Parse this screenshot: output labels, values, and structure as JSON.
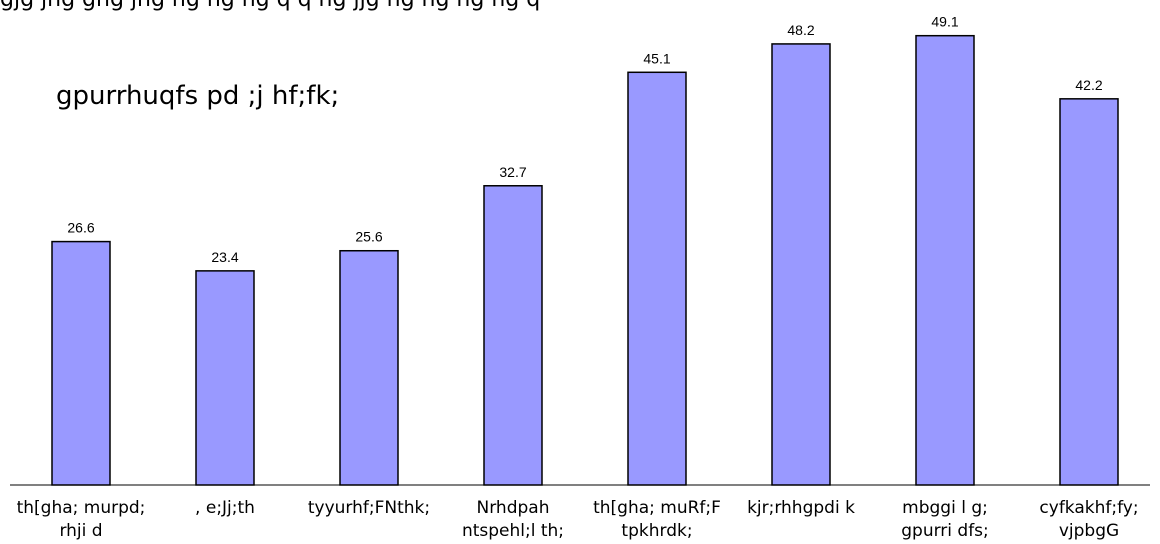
{
  "header": {
    "top_text": "gjg jhg ghg jhg hg hg hg q q ng jjg ng hg hg hg q"
  },
  "chart_data": {
    "type": "bar",
    "subtitle": "gpurrhuqfs pd ;j hf;fk;",
    "categories": [
      [
        "th[gha; murpd;",
        "rhji d"
      ],
      [
        ", e;Jj;th"
      ],
      [
        "tyyurhf;FNthk;"
      ],
      [
        "Nrhdpah",
        "ntspehl;l th;"
      ],
      [
        "th[gha; muRf;F",
        "tpkhrdk;"
      ],
      [
        "kjr;rhhgpdi k"
      ],
      [
        "mbggi l g;",
        "gpurri dfs;"
      ],
      [
        "cyfkakhf;fy;",
        "vjpbgG"
      ]
    ],
    "values": [
      26.6,
      23.4,
      25.6,
      32.7,
      45.1,
      48.2,
      49.1,
      42.2
    ],
    "ylim": [
      0,
      53
    ],
    "bar_color": "#9999ff",
    "grid": false
  }
}
